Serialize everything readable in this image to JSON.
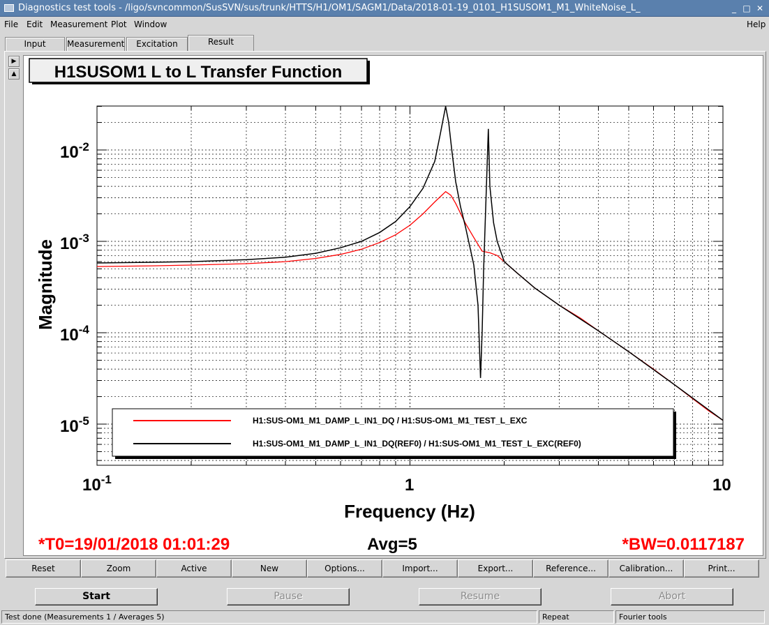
{
  "window": {
    "title": "Diagnostics test tools - /ligo/svncommon/SusSVN/sus/trunk/HTTS/H1/OM1/SAGM1/Data/2018-01-19_0101_H1SUSOM1_M1_WhiteNoise_L_",
    "minimize": "_",
    "maximize": "□",
    "close": "✕"
  },
  "menu": {
    "file": "File",
    "edit": "Edit",
    "measurement": "Measurement",
    "plot": "Plot",
    "window": "Window",
    "help": "Help"
  },
  "tabs": [
    "Input",
    "Measurement",
    "Excitation",
    "Result"
  ],
  "active_tab": "Result",
  "plot": {
    "title": "H1SUSOM1 L to L Transfer Function",
    "t0": "*T0=19/01/2018 01:01:29",
    "avg": "Avg=5",
    "bw": "*BW=0.0117187"
  },
  "chart_data": {
    "type": "line",
    "title": "H1SUSOM1 L to L Transfer Function",
    "xlabel": "Frequency (Hz)",
    "ylabel": "Magnitude",
    "xscale": "log",
    "yscale": "log",
    "xlim": [
      0.1,
      10
    ],
    "ylim": [
      3.5e-06,
      0.03
    ],
    "xticklabels": [
      "10^-1",
      "1",
      "10"
    ],
    "yticklabels": [
      "10^-5",
      "10^-4",
      "10^-3",
      "10^-2"
    ],
    "grid": true,
    "legend": "bottom-center",
    "series": [
      {
        "name": "H1:SUS-OM1_M1_DAMP_L_IN1_DQ / H1:SUS-OM1_M1_TEST_L_EXC",
        "color": "#ff0000",
        "x": [
          0.1,
          0.15,
          0.2,
          0.3,
          0.4,
          0.5,
          0.6,
          0.7,
          0.8,
          0.9,
          1.0,
          1.1,
          1.2,
          1.3,
          1.35,
          1.4,
          1.5,
          1.6,
          1.7,
          1.8,
          1.9,
          2.0,
          2.2,
          2.5,
          3.0,
          3.5,
          4.0,
          5.0,
          6.0,
          7.0,
          8.0,
          9.0,
          10.0
        ],
        "y": [
          0.00053,
          0.00054,
          0.00055,
          0.00057,
          0.0006,
          0.00065,
          0.00072,
          0.00082,
          0.00097,
          0.00118,
          0.0015,
          0.002,
          0.0027,
          0.0035,
          0.0032,
          0.0026,
          0.0016,
          0.0011,
          0.00078,
          0.00075,
          0.0007,
          0.0006,
          0.00045,
          0.00031,
          0.0002,
          0.000145,
          0.000105,
          6.2e-05,
          4e-05,
          2.7e-05,
          1.9e-05,
          1.4e-05,
          1.1e-05
        ]
      },
      {
        "name": "H1:SUS-OM1_M1_DAMP_L_IN1_DQ(REF0) / H1:SUS-OM1_M1_TEST_L_EXC(REF0)",
        "color": "#000000",
        "x": [
          0.1,
          0.15,
          0.2,
          0.3,
          0.4,
          0.5,
          0.6,
          0.7,
          0.8,
          0.9,
          1.0,
          1.1,
          1.2,
          1.25,
          1.3,
          1.33,
          1.36,
          1.4,
          1.45,
          1.5,
          1.55,
          1.6,
          1.65,
          1.68,
          1.7,
          1.72,
          1.75,
          1.78,
          1.8,
          1.85,
          1.9,
          2.0,
          2.2,
          2.5,
          3.0,
          4.0,
          5.0,
          7.0,
          10.0
        ],
        "y": [
          0.00058,
          0.00059,
          0.0006,
          0.00063,
          0.00067,
          0.00074,
          0.00085,
          0.001,
          0.00125,
          0.00165,
          0.0024,
          0.0038,
          0.0075,
          0.015,
          0.03,
          0.02,
          0.01,
          0.0045,
          0.0024,
          0.0015,
          0.0009,
          0.00055,
          0.0002,
          3.2e-05,
          0.0001,
          0.0005,
          0.003,
          0.017,
          0.004,
          0.0016,
          0.001,
          0.0006,
          0.00045,
          0.00031,
          0.0002,
          0.000105,
          6.2e-05,
          2.7e-05,
          1.1e-05
        ]
      }
    ]
  },
  "toolbar": [
    "Reset",
    "Zoom",
    "Active",
    "New",
    "Options...",
    "Import...",
    "Export...",
    "Reference...",
    "Calibration...",
    "Print..."
  ],
  "controls": {
    "start": "Start",
    "pause": "Pause",
    "resume": "Resume",
    "abort": "Abort"
  },
  "status": {
    "message": "Test done (Measurements 1 / Averages 5)",
    "mode": "Repeat",
    "tool": "Fourier tools"
  }
}
